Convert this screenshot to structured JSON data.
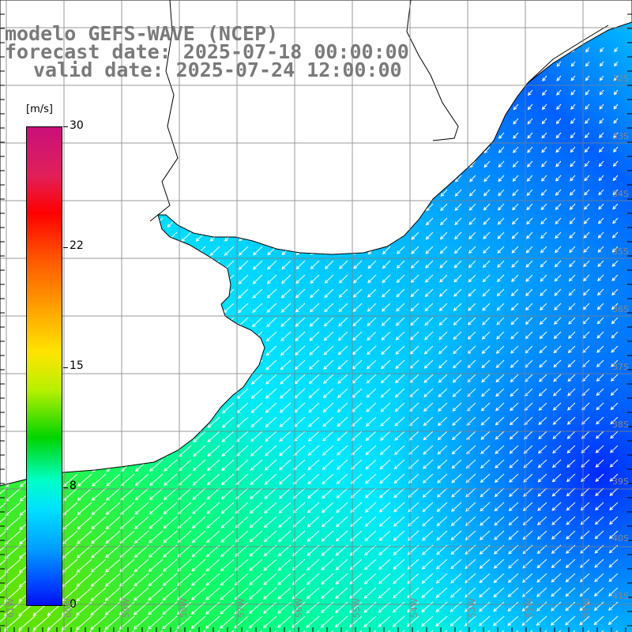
{
  "title": {
    "line1": "modelo GEFS-WAVE (NCEP)",
    "line2": "forecast date: 2025-07-18 00:00:00",
    "line3": "valid date: 2025-07-24 12:00:00"
  },
  "colorbar": {
    "units": "[m/s]",
    "ticks": [
      "30",
      "22",
      "15",
      "8",
      "0"
    ],
    "tick_values": [
      30,
      22,
      15,
      8,
      0
    ],
    "colors": [
      "#c8107a",
      "#ff0000",
      "#ff9a00",
      "#ffe400",
      "#00d400",
      "#00ffff",
      "#0010f0"
    ]
  },
  "map": {
    "lat_labels": [
      "32S",
      "33S",
      "34S",
      "35S",
      "36S",
      "37S",
      "38S",
      "39S",
      "40S",
      "41S"
    ],
    "lon_labels": [
      "61W",
      "60W",
      "59W",
      "58W",
      "57W",
      "56W",
      "55W",
      "54W",
      "53W",
      "52W",
      "51W"
    ],
    "field": "wind speed and direction",
    "land_color": "#ffffff",
    "grid_color": "#808080"
  }
}
